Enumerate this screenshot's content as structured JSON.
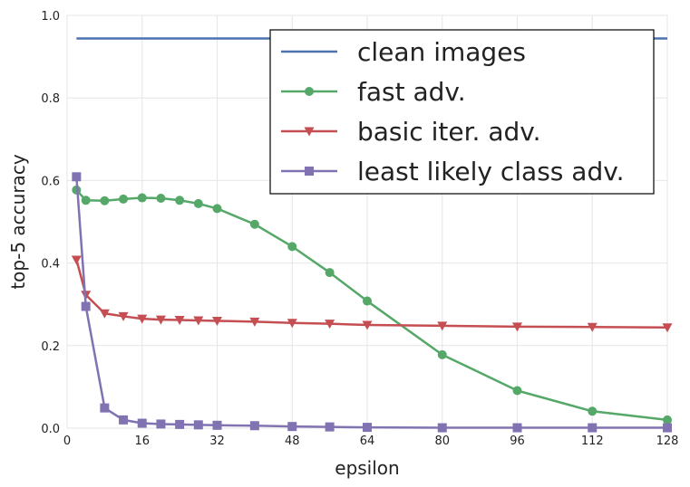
{
  "chart_data": {
    "type": "line",
    "title": "",
    "xlabel": "epsilon",
    "ylabel": "top-5 accuracy",
    "xlim": [
      0,
      128
    ],
    "ylim": [
      0.0,
      1.0
    ],
    "x_ticks": [
      "0",
      "16",
      "32",
      "48",
      "64",
      "80",
      "96",
      "112",
      "128"
    ],
    "y_ticks": [
      "0.0",
      "0.2",
      "0.4",
      "0.6",
      "0.8",
      "1.0"
    ],
    "grid": true,
    "legend_position": "top-right",
    "series": [
      {
        "name": "clean images",
        "color": "#4c72b0",
        "marker": "none",
        "x": [
          2,
          128
        ],
        "y": [
          0.944,
          0.944
        ]
      },
      {
        "name": "fast adv.",
        "color": "#55a868",
        "marker": "circle",
        "x": [
          2,
          4,
          8,
          12,
          16,
          20,
          24,
          28,
          32,
          40,
          48,
          56,
          64,
          80,
          96,
          112,
          128
        ],
        "y": [
          0.577,
          0.552,
          0.551,
          0.555,
          0.558,
          0.557,
          0.552,
          0.544,
          0.532,
          0.494,
          0.44,
          0.377,
          0.308,
          0.178,
          0.091,
          0.041,
          0.02
        ]
      },
      {
        "name": "basic iter. adv.",
        "color": "#c44e52",
        "marker": "triangle-down",
        "x": [
          2,
          4,
          8,
          12,
          16,
          20,
          24,
          28,
          32,
          40,
          48,
          56,
          64,
          80,
          96,
          112,
          128
        ],
        "y": [
          0.408,
          0.323,
          0.278,
          0.271,
          0.265,
          0.263,
          0.262,
          0.261,
          0.26,
          0.258,
          0.255,
          0.253,
          0.25,
          0.248,
          0.246,
          0.245,
          0.244
        ]
      },
      {
        "name": "least likely class adv.",
        "color": "#8172b2",
        "marker": "square",
        "x": [
          2,
          4,
          8,
          12,
          16,
          20,
          24,
          28,
          32,
          40,
          48,
          56,
          64,
          80,
          96,
          112,
          128
        ],
        "y": [
          0.609,
          0.295,
          0.049,
          0.02,
          0.012,
          0.01,
          0.009,
          0.008,
          0.007,
          0.006,
          0.004,
          0.003,
          0.002,
          0.001,
          0.001,
          0.001,
          0.001
        ]
      }
    ]
  }
}
